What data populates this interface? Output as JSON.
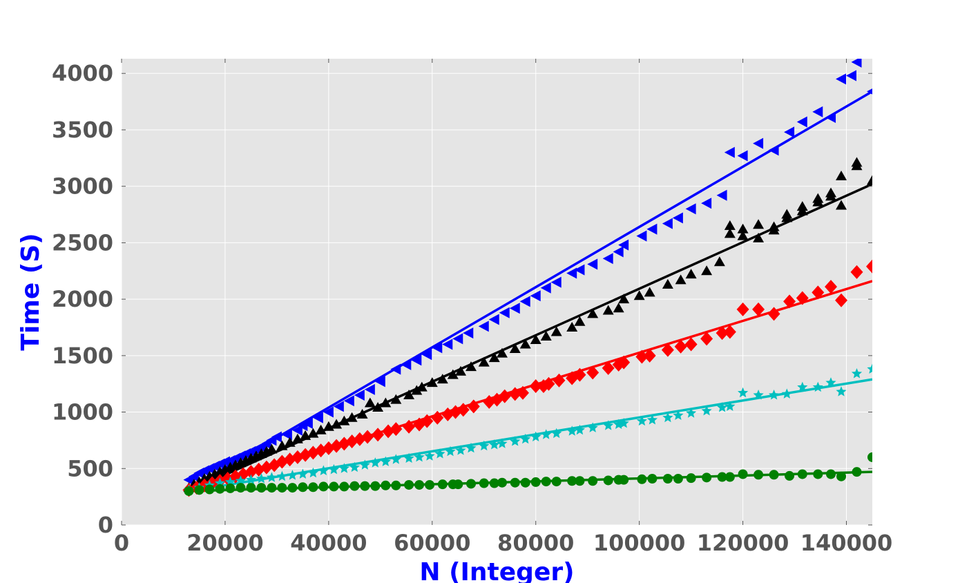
{
  "chart_data": {
    "type": "scatter",
    "title": "",
    "xlabel": "N (Integer)",
    "ylabel": "Time (S)",
    "label_color": "#0000ff",
    "xlim": [
      0,
      145000
    ],
    "ylim": [
      0,
      4130
    ],
    "xticks": [
      0,
      20000,
      40000,
      60000,
      80000,
      100000,
      120000,
      140000
    ],
    "yticks": [
      0,
      500,
      1000,
      1500,
      2000,
      2500,
      3000,
      3500,
      4000
    ],
    "grid": true,
    "background": "#e5e5e5",
    "legend": "none",
    "series": [
      {
        "color": "#0000ff",
        "marker": "triangle-left",
        "x": [
          13000,
          14000,
          15000,
          16000,
          17000,
          18000,
          19000,
          20000,
          21000,
          22000,
          23000,
          24000,
          25000,
          26000,
          27000,
          28000,
          29000,
          30000,
          32000,
          34000,
          35000,
          36000,
          38000,
          40000,
          42000,
          44000,
          46000,
          48000,
          50000,
          53000,
          55000,
          57000,
          59000,
          61000,
          63000,
          65000,
          67000,
          70000,
          72000,
          74000,
          76000,
          78000,
          80000,
          82000,
          84000,
          87000,
          88500,
          91000,
          94000,
          96000,
          97000,
          100500,
          102500,
          105500,
          107500,
          110000,
          113000,
          116000,
          117500,
          120000,
          123000,
          126000,
          129000,
          131500,
          134500,
          137000,
          139000,
          141000,
          142000,
          145000
        ],
        "y": [
          400,
          430,
          460,
          480,
          500,
          520,
          540,
          560,
          570,
          590,
          610,
          630,
          650,
          670,
          690,
          720,
          750,
          780,
          800,
          840,
          880,
          900,
          950,
          1000,
          1050,
          1100,
          1150,
          1200,
          1270,
          1380,
          1420,
          1460,
          1510,
          1570,
          1600,
          1650,
          1700,
          1760,
          1820,
          1880,
          1920,
          1980,
          2030,
          2100,
          2150,
          2230,
          2260,
          2310,
          2360,
          2420,
          2480,
          2560,
          2620,
          2670,
          2720,
          2800,
          2850,
          2920,
          3300,
          3270,
          3380,
          3320,
          3480,
          3570,
          3660,
          3610,
          3950,
          3980,
          4100,
          3840
        ]
      },
      {
        "color": "#000000",
        "marker": "triangle-up",
        "x": [
          13000,
          14000,
          15000,
          16000,
          17000,
          18000,
          19000,
          20000,
          21000,
          22000,
          23000,
          24000,
          25000,
          26000,
          27000,
          28000,
          29000,
          31000,
          32500,
          34000,
          35500,
          37000,
          38500,
          40000,
          41500,
          43000,
          44500,
          46500,
          48000,
          49500,
          51000,
          53000,
          55500,
          57000,
          58000,
          60000,
          62000,
          64000,
          65500,
          67500,
          70000,
          72000,
          73500,
          76000,
          78000,
          80000,
          82000,
          84000,
          87000,
          88500,
          91000,
          94000,
          96000,
          97000,
          100000,
          102000,
          105500,
          108000,
          110000,
          113000,
          115500,
          117500,
          117500,
          120000,
          120000,
          123000,
          123000,
          126000,
          126000,
          128500,
          128500,
          131500,
          131500,
          134500,
          134500,
          137000,
          137000,
          139000,
          139000,
          142000,
          142000,
          145000
        ],
        "y": [
          330,
          360,
          380,
          410,
          430,
          450,
          470,
          490,
          510,
          530,
          550,
          570,
          590,
          610,
          630,
          650,
          670,
          700,
          730,
          760,
          790,
          810,
          840,
          870,
          890,
          920,
          950,
          980,
          1080,
          1040,
          1080,
          1110,
          1150,
          1190,
          1220,
          1260,
          1290,
          1330,
          1360,
          1400,
          1440,
          1480,
          1520,
          1560,
          1600,
          1640,
          1670,
          1710,
          1750,
          1800,
          1870,
          1900,
          1920,
          2000,
          2030,
          2060,
          2130,
          2170,
          2220,
          2250,
          2330,
          2580,
          2650,
          2560,
          2620,
          2540,
          2660,
          2610,
          2640,
          2720,
          2750,
          2780,
          2820,
          2860,
          2890,
          2910,
          2940,
          2830,
          3090,
          3180,
          3210,
          3050
        ]
      },
      {
        "color": "#ff0000",
        "marker": "diamond",
        "x": [
          13000,
          14500,
          16000,
          17500,
          19000,
          20500,
          22000,
          23500,
          25000,
          26500,
          28000,
          29500,
          31000,
          32500,
          34000,
          35500,
          37000,
          38500,
          40000,
          41500,
          43000,
          44500,
          46000,
          47500,
          49500,
          51500,
          53000,
          55500,
          57500,
          59000,
          61000,
          63000,
          64500,
          66000,
          68000,
          71000,
          72500,
          74000,
          76000,
          77500,
          80000,
          81500,
          82500,
          84500,
          87000,
          88500,
          91000,
          94000,
          96000,
          97000,
          100500,
          102000,
          105500,
          108000,
          110000,
          113000,
          116000,
          117500,
          120000,
          123000,
          126000,
          129000,
          131500,
          134500,
          137000,
          139000,
          142000,
          145000
        ],
        "y": [
          310,
          330,
          350,
          370,
          390,
          410,
          430,
          450,
          470,
          490,
          510,
          530,
          560,
          580,
          600,
          620,
          640,
          660,
          680,
          700,
          720,
          740,
          760,
          780,
          800,
          830,
          850,
          870,
          890,
          920,
          950,
          980,
          1000,
          1020,
          1050,
          1090,
          1110,
          1140,
          1160,
          1170,
          1230,
          1230,
          1250,
          1280,
          1300,
          1330,
          1350,
          1390,
          1420,
          1440,
          1490,
          1500,
          1550,
          1580,
          1600,
          1650,
          1700,
          1710,
          1910,
          1910,
          1870,
          1980,
          2010,
          2060,
          2110,
          1990,
          2240,
          2290
        ]
      },
      {
        "color": "#00bfbf",
        "marker": "star",
        "x": [
          13000,
          15000,
          17000,
          19000,
          21000,
          23000,
          25000,
          27000,
          29000,
          31000,
          33000,
          35000,
          37000,
          39000,
          41000,
          43000,
          45000,
          47000,
          49000,
          51000,
          53000,
          55500,
          57500,
          59500,
          61500,
          63500,
          65500,
          67500,
          70000,
          72000,
          73500,
          76000,
          78000,
          80000,
          82000,
          84000,
          87000,
          88500,
          91000,
          94000,
          96000,
          97000,
          100500,
          102500,
          105500,
          107500,
          110000,
          113000,
          116000,
          117500,
          120000,
          123000,
          126000,
          128500,
          131500,
          134500,
          137000,
          139000,
          142000,
          145000
        ],
        "y": [
          310,
          330,
          350,
          370,
          380,
          390,
          400,
          410,
          420,
          430,
          440,
          450,
          460,
          480,
          490,
          500,
          510,
          530,
          550,
          560,
          580,
          590,
          600,
          610,
          630,
          650,
          660,
          680,
          700,
          710,
          720,
          740,
          760,
          780,
          800,
          810,
          830,
          840,
          860,
          880,
          890,
          900,
          920,
          930,
          950,
          970,
          990,
          1010,
          1040,
          1050,
          1170,
          1150,
          1150,
          1160,
          1220,
          1220,
          1260,
          1180,
          1340,
          1380
        ]
      },
      {
        "color": "#008000",
        "marker": "circle",
        "x": [
          13000,
          15000,
          17000,
          19000,
          21000,
          23000,
          25000,
          27000,
          29000,
          31000,
          33000,
          35000,
          37000,
          39000,
          41000,
          43000,
          45000,
          47000,
          49000,
          51000,
          53000,
          55500,
          57500,
          59500,
          62000,
          64000,
          65000,
          67500,
          70000,
          72000,
          73500,
          76000,
          78000,
          80000,
          82000,
          84000,
          87000,
          88500,
          91000,
          94000,
          96000,
          97000,
          100500,
          102500,
          105500,
          107500,
          110000,
          113000,
          116000,
          117500,
          120000,
          123000,
          126000,
          129000,
          131500,
          134500,
          137000,
          139000,
          142000,
          145000
        ],
        "y": [
          300,
          310,
          315,
          320,
          325,
          330,
          330,
          330,
          330,
          330,
          330,
          335,
          335,
          340,
          340,
          340,
          345,
          345,
          345,
          350,
          350,
          355,
          355,
          355,
          360,
          360,
          360,
          365,
          370,
          370,
          375,
          375,
          375,
          380,
          385,
          385,
          390,
          390,
          390,
          395,
          400,
          400,
          405,
          410,
          410,
          410,
          415,
          420,
          425,
          425,
          450,
          445,
          445,
          435,
          450,
          450,
          450,
          430,
          470,
          600
        ]
      }
    ],
    "fit_lines": [
      {
        "color": "#0000ff",
        "x": [
          13000,
          145000
        ],
        "y": [
          320,
          3840
        ]
      },
      {
        "color": "#000000",
        "x": [
          13000,
          145000
        ],
        "y": [
          300,
          3020
        ]
      },
      {
        "color": "#ff0000",
        "x": [
          13000,
          145000
        ],
        "y": [
          300,
          2160
        ]
      },
      {
        "color": "#00bfbf",
        "x": [
          13000,
          145000
        ],
        "y": [
          300,
          1290
        ]
      },
      {
        "color": "#008000",
        "x": [
          13000,
          145000
        ],
        "y": [
          300,
          470
        ]
      }
    ]
  }
}
